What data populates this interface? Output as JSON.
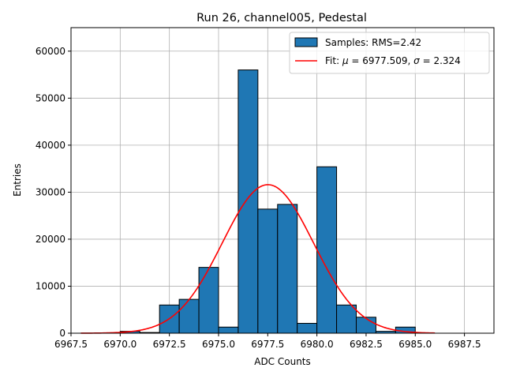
{
  "chart_data": {
    "type": "bar",
    "title": "Run 26, channel005, Pedestal",
    "xlabel": "ADC Counts",
    "ylabel": "Entries",
    "xlim": [
      6967.5,
      6989.0
    ],
    "ylim": [
      0,
      65000
    ],
    "grid": true,
    "legend_position": "top-right",
    "x_ticks": [
      {
        "value": 6967.5,
        "label": "6967.5"
      },
      {
        "value": 6970.0,
        "label": "6970.0"
      },
      {
        "value": 6972.5,
        "label": "6972.5"
      },
      {
        "value": 6975.0,
        "label": "6975.0"
      },
      {
        "value": 6977.5,
        "label": "6977.5"
      },
      {
        "value": 6980.0,
        "label": "6980.0"
      },
      {
        "value": 6982.5,
        "label": "6982.5"
      },
      {
        "value": 6985.0,
        "label": "6985.0"
      },
      {
        "value": 6987.5,
        "label": "6987.5"
      }
    ],
    "y_ticks": [
      {
        "value": 0,
        "label": "0"
      },
      {
        "value": 10000,
        "label": "10000"
      },
      {
        "value": 20000,
        "label": "20000"
      },
      {
        "value": 30000,
        "label": "30000"
      },
      {
        "value": 40000,
        "label": "40000"
      },
      {
        "value": 50000,
        "label": "50000"
      },
      {
        "value": 60000,
        "label": "60000"
      }
    ],
    "histogram": {
      "name": "Samples: RMS=2.42",
      "color": "#1f77b4",
      "edge_color": "#000000",
      "bin_edges": [
        6968.0,
        6969.0,
        6970.0,
        6971.0,
        6972.0,
        6973.0,
        6974.0,
        6975.0,
        6976.0,
        6977.0,
        6978.0,
        6979.0,
        6980.0,
        6981.0,
        6982.0,
        6983.0,
        6984.0,
        6985.0,
        6986.0
      ],
      "counts": [
        0,
        0,
        400,
        150,
        6000,
        7200,
        14000,
        1300,
        56000,
        26400,
        27400,
        2100,
        35400,
        6000,
        3400,
        400,
        1300,
        0
      ]
    },
    "fit": {
      "name": "Fit: μ = 6977.509, σ = 2.324",
      "name_prefix": "Fit: ",
      "mu_symbol": "μ",
      "mu_text": " = 6977.509, ",
      "sigma_symbol": "σ",
      "sigma_text": " = 2.324",
      "color": "#ff0000",
      "mu": 6977.509,
      "sigma": 2.324,
      "amplitude": 31600,
      "x_range": [
        6968.0,
        6986.0
      ]
    }
  }
}
